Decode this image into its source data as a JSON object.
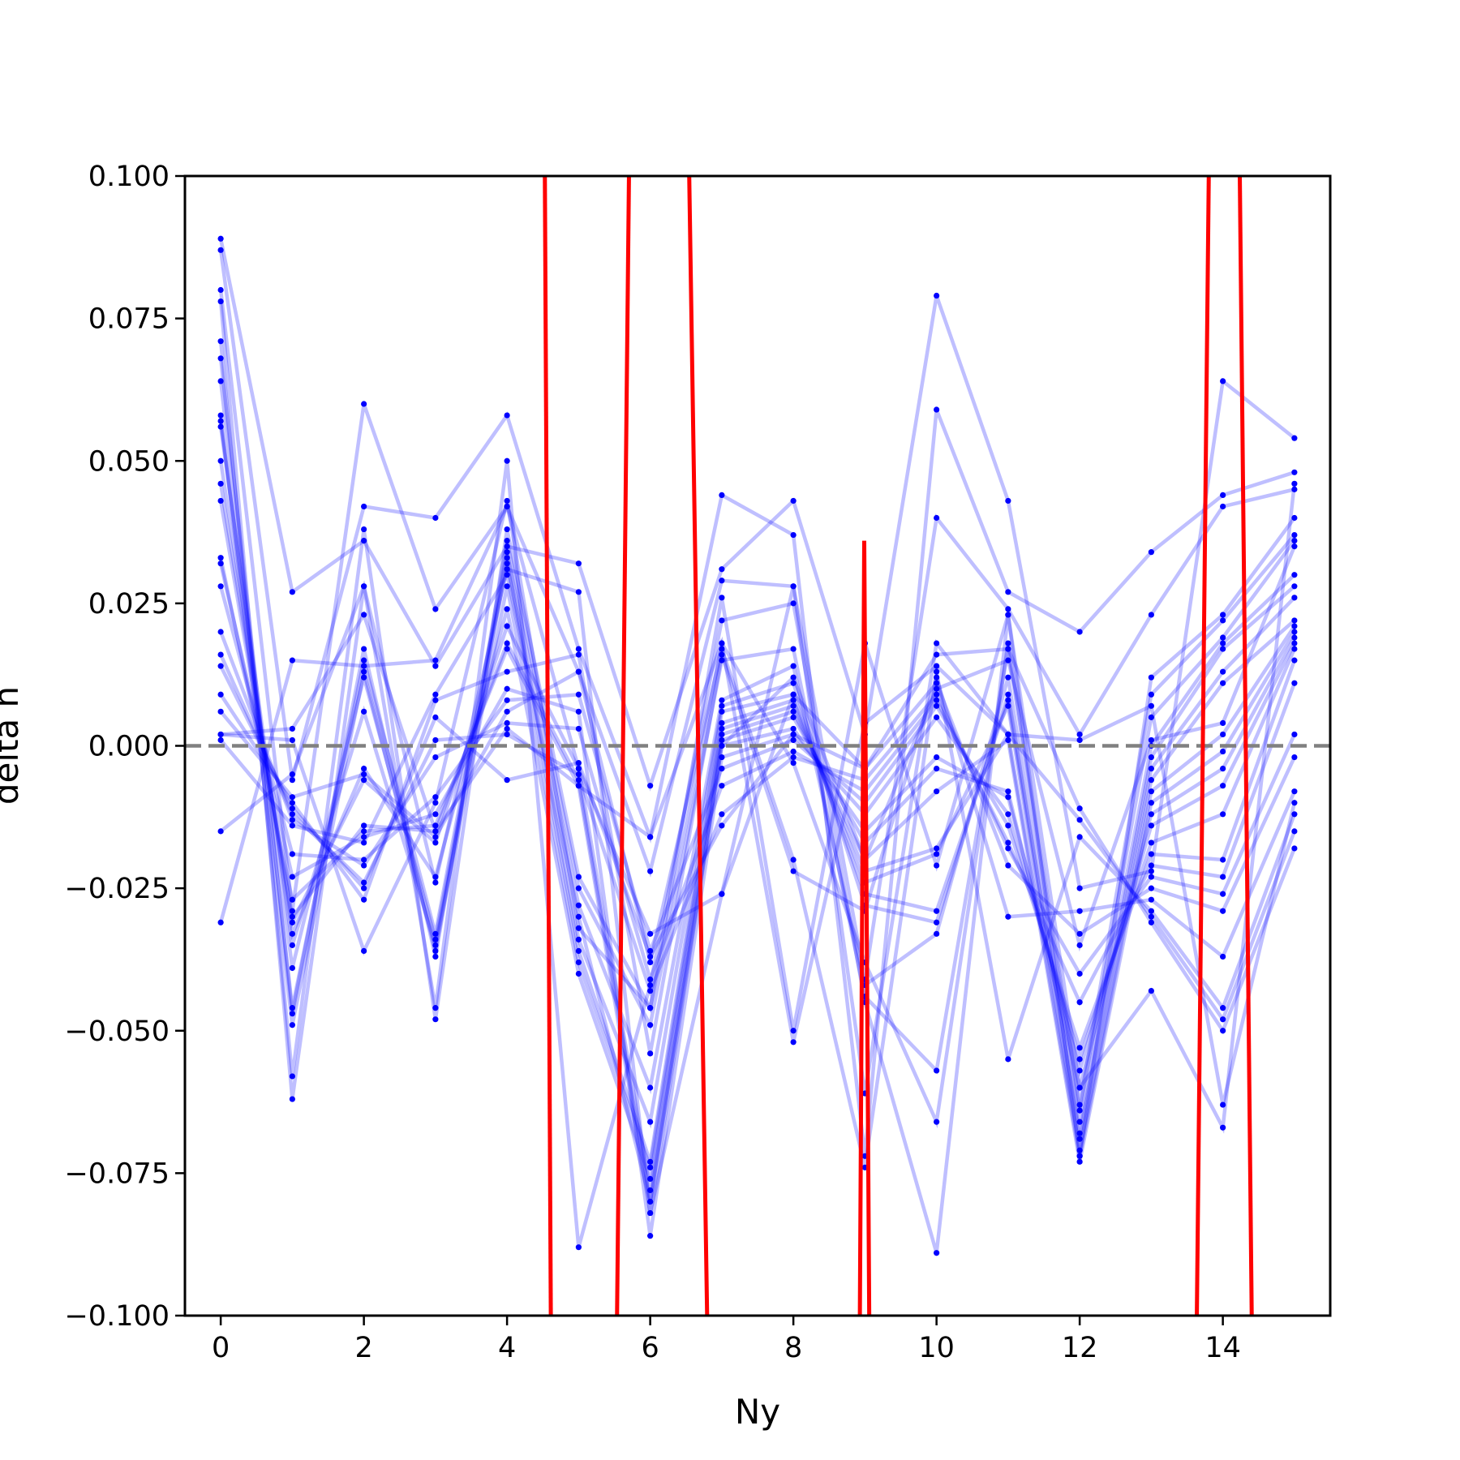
{
  "chart_data": {
    "type": "line",
    "title": "",
    "xlabel": "Ny",
    "ylabel": "delta h",
    "xlim": [
      -0.5,
      15.5
    ],
    "ylim": [
      -0.1,
      0.1
    ],
    "x_ticks": [
      0,
      2,
      4,
      6,
      8,
      10,
      12,
      14
    ],
    "x_tick_labels": [
      "0",
      "2",
      "4",
      "6",
      "8",
      "10",
      "12",
      "14"
    ],
    "y_ticks": [
      -0.1,
      -0.075,
      -0.05,
      -0.025,
      0.0,
      0.025,
      0.05,
      0.075,
      0.1
    ],
    "y_tick_labels": [
      "−0.100",
      "−0.075",
      "−0.050",
      "−0.025",
      "0.000",
      "0.025",
      "0.050",
      "0.075",
      "0.100"
    ],
    "reference_line": {
      "y": 0.0,
      "style": "dashed",
      "color": "#808080"
    },
    "series_color": "#0000ff",
    "series_alpha": 0.25,
    "highlight_color": "#ff0000",
    "x": [
      0,
      1,
      2,
      3,
      4,
      5,
      6,
      7,
      8,
      9,
      10,
      11,
      12,
      13,
      14,
      15
    ],
    "series": [
      {
        "values": [
          0.089,
          0.027,
          0.036,
          0.014,
          0.035,
          0.032,
          -0.007,
          0.031,
          0.043,
          0.002,
          0.079,
          0.043,
          -0.025,
          -0.022,
          0.064,
          0.054
        ]
      },
      {
        "values": [
          0.087,
          -0.006,
          0.042,
          0.04,
          0.058,
          0.017,
          -0.016,
          0.044,
          0.037,
          -0.072,
          0.059,
          0.027,
          0.02,
          0.034,
          0.044,
          0.048
        ]
      },
      {
        "values": [
          0.08,
          -0.029,
          0.06,
          0.024,
          0.042,
          0.013,
          -0.022,
          0.029,
          0.028,
          -0.041,
          0.04,
          0.024,
          0.002,
          0.023,
          0.042,
          0.045
        ]
      },
      {
        "values": [
          0.078,
          -0.062,
          0.028,
          -0.046,
          0.05,
          -0.088,
          -0.042,
          0.022,
          0.025,
          -0.045,
          -0.089,
          0.023,
          -0.072,
          0.012,
          0.023,
          0.04
        ]
      },
      {
        "values": [
          0.071,
          -0.058,
          0.038,
          -0.048,
          0.038,
          -0.023,
          -0.046,
          0.018,
          -0.003,
          -0.038,
          -0.066,
          0.018,
          -0.063,
          0.009,
          0.022,
          0.037
        ]
      },
      {
        "values": [
          0.068,
          -0.047,
          0.017,
          -0.037,
          0.036,
          -0.025,
          -0.049,
          0.015,
          0.017,
          -0.044,
          -0.057,
          0.017,
          -0.064,
          0.005,
          0.019,
          0.036
        ]
      },
      {
        "values": [
          0.064,
          -0.046,
          0.015,
          -0.033,
          0.034,
          -0.028,
          -0.06,
          0.008,
          0.014,
          -0.042,
          -0.033,
          0.012,
          -0.066,
          0.0,
          0.018,
          0.03
        ]
      },
      {
        "values": [
          0.058,
          -0.049,
          0.013,
          -0.036,
          0.033,
          -0.034,
          -0.066,
          0.007,
          0.011,
          -0.028,
          -0.031,
          0.009,
          -0.068,
          -0.002,
          0.017,
          0.028
        ]
      },
      {
        "values": [
          0.057,
          -0.039,
          0.012,
          -0.034,
          0.032,
          -0.036,
          -0.073,
          0.006,
          0.009,
          -0.026,
          -0.029,
          0.008,
          -0.069,
          -0.004,
          0.013,
          0.026
        ]
      },
      {
        "values": [
          0.056,
          -0.035,
          0.006,
          -0.035,
          0.028,
          -0.038,
          -0.074,
          0.004,
          0.008,
          -0.024,
          -0.019,
          0.007,
          -0.071,
          -0.006,
          0.011,
          0.022
        ]
      },
      {
        "values": [
          0.05,
          -0.033,
          -0.004,
          -0.023,
          0.024,
          -0.04,
          -0.076,
          0.003,
          0.007,
          -0.022,
          -0.018,
          0.002,
          -0.072,
          -0.008,
          0.002,
          0.021
        ]
      },
      {
        "values": [
          0.046,
          -0.031,
          -0.006,
          -0.017,
          0.021,
          -0.004,
          -0.078,
          0.002,
          0.006,
          -0.02,
          -0.008,
          0.001,
          -0.073,
          -0.01,
          -0.001,
          0.02
        ]
      },
      {
        "values": [
          0.043,
          -0.03,
          -0.014,
          -0.015,
          0.018,
          -0.006,
          -0.08,
          0.001,
          0.005,
          -0.017,
          -0.004,
          -0.008,
          -0.06,
          -0.012,
          -0.004,
          0.019
        ]
      },
      {
        "values": [
          0.033,
          -0.027,
          -0.015,
          -0.014,
          0.017,
          -0.007,
          -0.082,
          0.0,
          0.003,
          -0.015,
          -0.002,
          -0.009,
          -0.057,
          -0.014,
          -0.007,
          0.018
        ]
      },
      {
        "values": [
          0.032,
          -0.023,
          -0.016,
          -0.012,
          0.01,
          0.006,
          -0.086,
          -0.002,
          0.002,
          -0.012,
          0.005,
          -0.012,
          -0.055,
          -0.017,
          -0.012,
          0.017
        ]
      },
      {
        "values": [
          0.028,
          -0.019,
          -0.02,
          -0.009,
          0.008,
          0.009,
          -0.036,
          -0.004,
          0.001,
          -0.01,
          0.007,
          -0.014,
          -0.053,
          -0.019,
          -0.02,
          0.015
        ]
      },
      {
        "values": [
          0.02,
          -0.013,
          -0.021,
          -0.002,
          0.004,
          0.003,
          -0.041,
          -0.007,
          -0.001,
          -0.008,
          0.008,
          -0.017,
          -0.045,
          -0.021,
          -0.023,
          0.011
        ]
      },
      {
        "values": [
          0.016,
          -0.012,
          -0.024,
          0.001,
          0.002,
          -0.005,
          -0.043,
          -0.012,
          -0.002,
          -0.006,
          0.009,
          -0.018,
          -0.04,
          -0.023,
          -0.026,
          0.002
        ]
      },
      {
        "values": [
          0.014,
          -0.011,
          -0.025,
          0.005,
          -0.006,
          -0.003,
          -0.037,
          -0.014,
          0.002,
          -0.004,
          0.011,
          -0.021,
          -0.033,
          -0.025,
          -0.029,
          -0.002
        ]
      },
      {
        "values": [
          0.009,
          -0.01,
          -0.027,
          0.008,
          0.013,
          0.016,
          -0.054,
          0.016,
          -0.022,
          -0.029,
          0.012,
          -0.03,
          -0.029,
          -0.027,
          -0.037,
          -0.008
        ]
      },
      {
        "values": [
          0.006,
          -0.009,
          -0.005,
          -0.016,
          0.006,
          0.013,
          -0.038,
          0.017,
          -0.02,
          -0.074,
          0.013,
          -0.055,
          -0.016,
          -0.029,
          -0.046,
          -0.012
        ]
      },
      {
        "values": [
          0.002,
          0.003,
          0.023,
          -0.015,
          0.003,
          -0.007,
          -0.016,
          0.018,
          -0.052,
          0.004,
          0.014,
          0.002,
          -0.013,
          -0.03,
          -0.048,
          -0.015
        ]
      },
      {
        "values": [
          -0.015,
          -0.005,
          0.028,
          -0.024,
          0.031,
          0.027,
          -0.082,
          -0.026,
          0.009,
          -0.004,
          0.016,
          0.017,
          -0.011,
          -0.031,
          -0.05,
          -0.018
        ]
      },
      {
        "values": [
          -0.031,
          0.015,
          0.014,
          0.015,
          0.042,
          -0.004,
          -0.033,
          -0.026,
          0.028,
          -0.061,
          0.018,
          0.002,
          0.001,
          0.007,
          -0.063,
          -0.01
        ]
      },
      {
        "values": [
          0.002,
          0.001,
          -0.036,
          -0.01,
          0.043,
          -0.032,
          -0.046,
          0.026,
          -0.05,
          0.018,
          -0.021,
          0.023,
          -0.06,
          -0.043,
          -0.067,
          0.046
        ]
      },
      {
        "values": [
          0.001,
          -0.014,
          -0.017,
          0.009,
          0.03,
          -0.03,
          -0.08,
          0.0,
          0.012,
          -0.02,
          0.01,
          0.015,
          -0.035,
          0.001,
          0.004,
          0.035
        ]
      }
    ],
    "highlight_segments": [
      {
        "from": [
          4.52,
          0.12
        ],
        "to": [
          4.62,
          -0.12
        ]
      },
      {
        "from": [
          5.52,
          -0.12
        ],
        "to": [
          5.72,
          0.12
        ]
      },
      {
        "from": [
          6.52,
          0.12
        ],
        "to": [
          6.82,
          -0.12
        ]
      },
      {
        "from": [
          8.92,
          -0.12
        ],
        "to": [
          8.99,
          0.036
        ],
        "to2": [
          9.07,
          -0.12
        ]
      },
      {
        "from": [
          13.62,
          -0.12
        ],
        "to": [
          13.82,
          0.12
        ]
      },
      {
        "from": [
          14.22,
          0.12
        ],
        "to": [
          14.42,
          -0.12
        ]
      }
    ]
  }
}
